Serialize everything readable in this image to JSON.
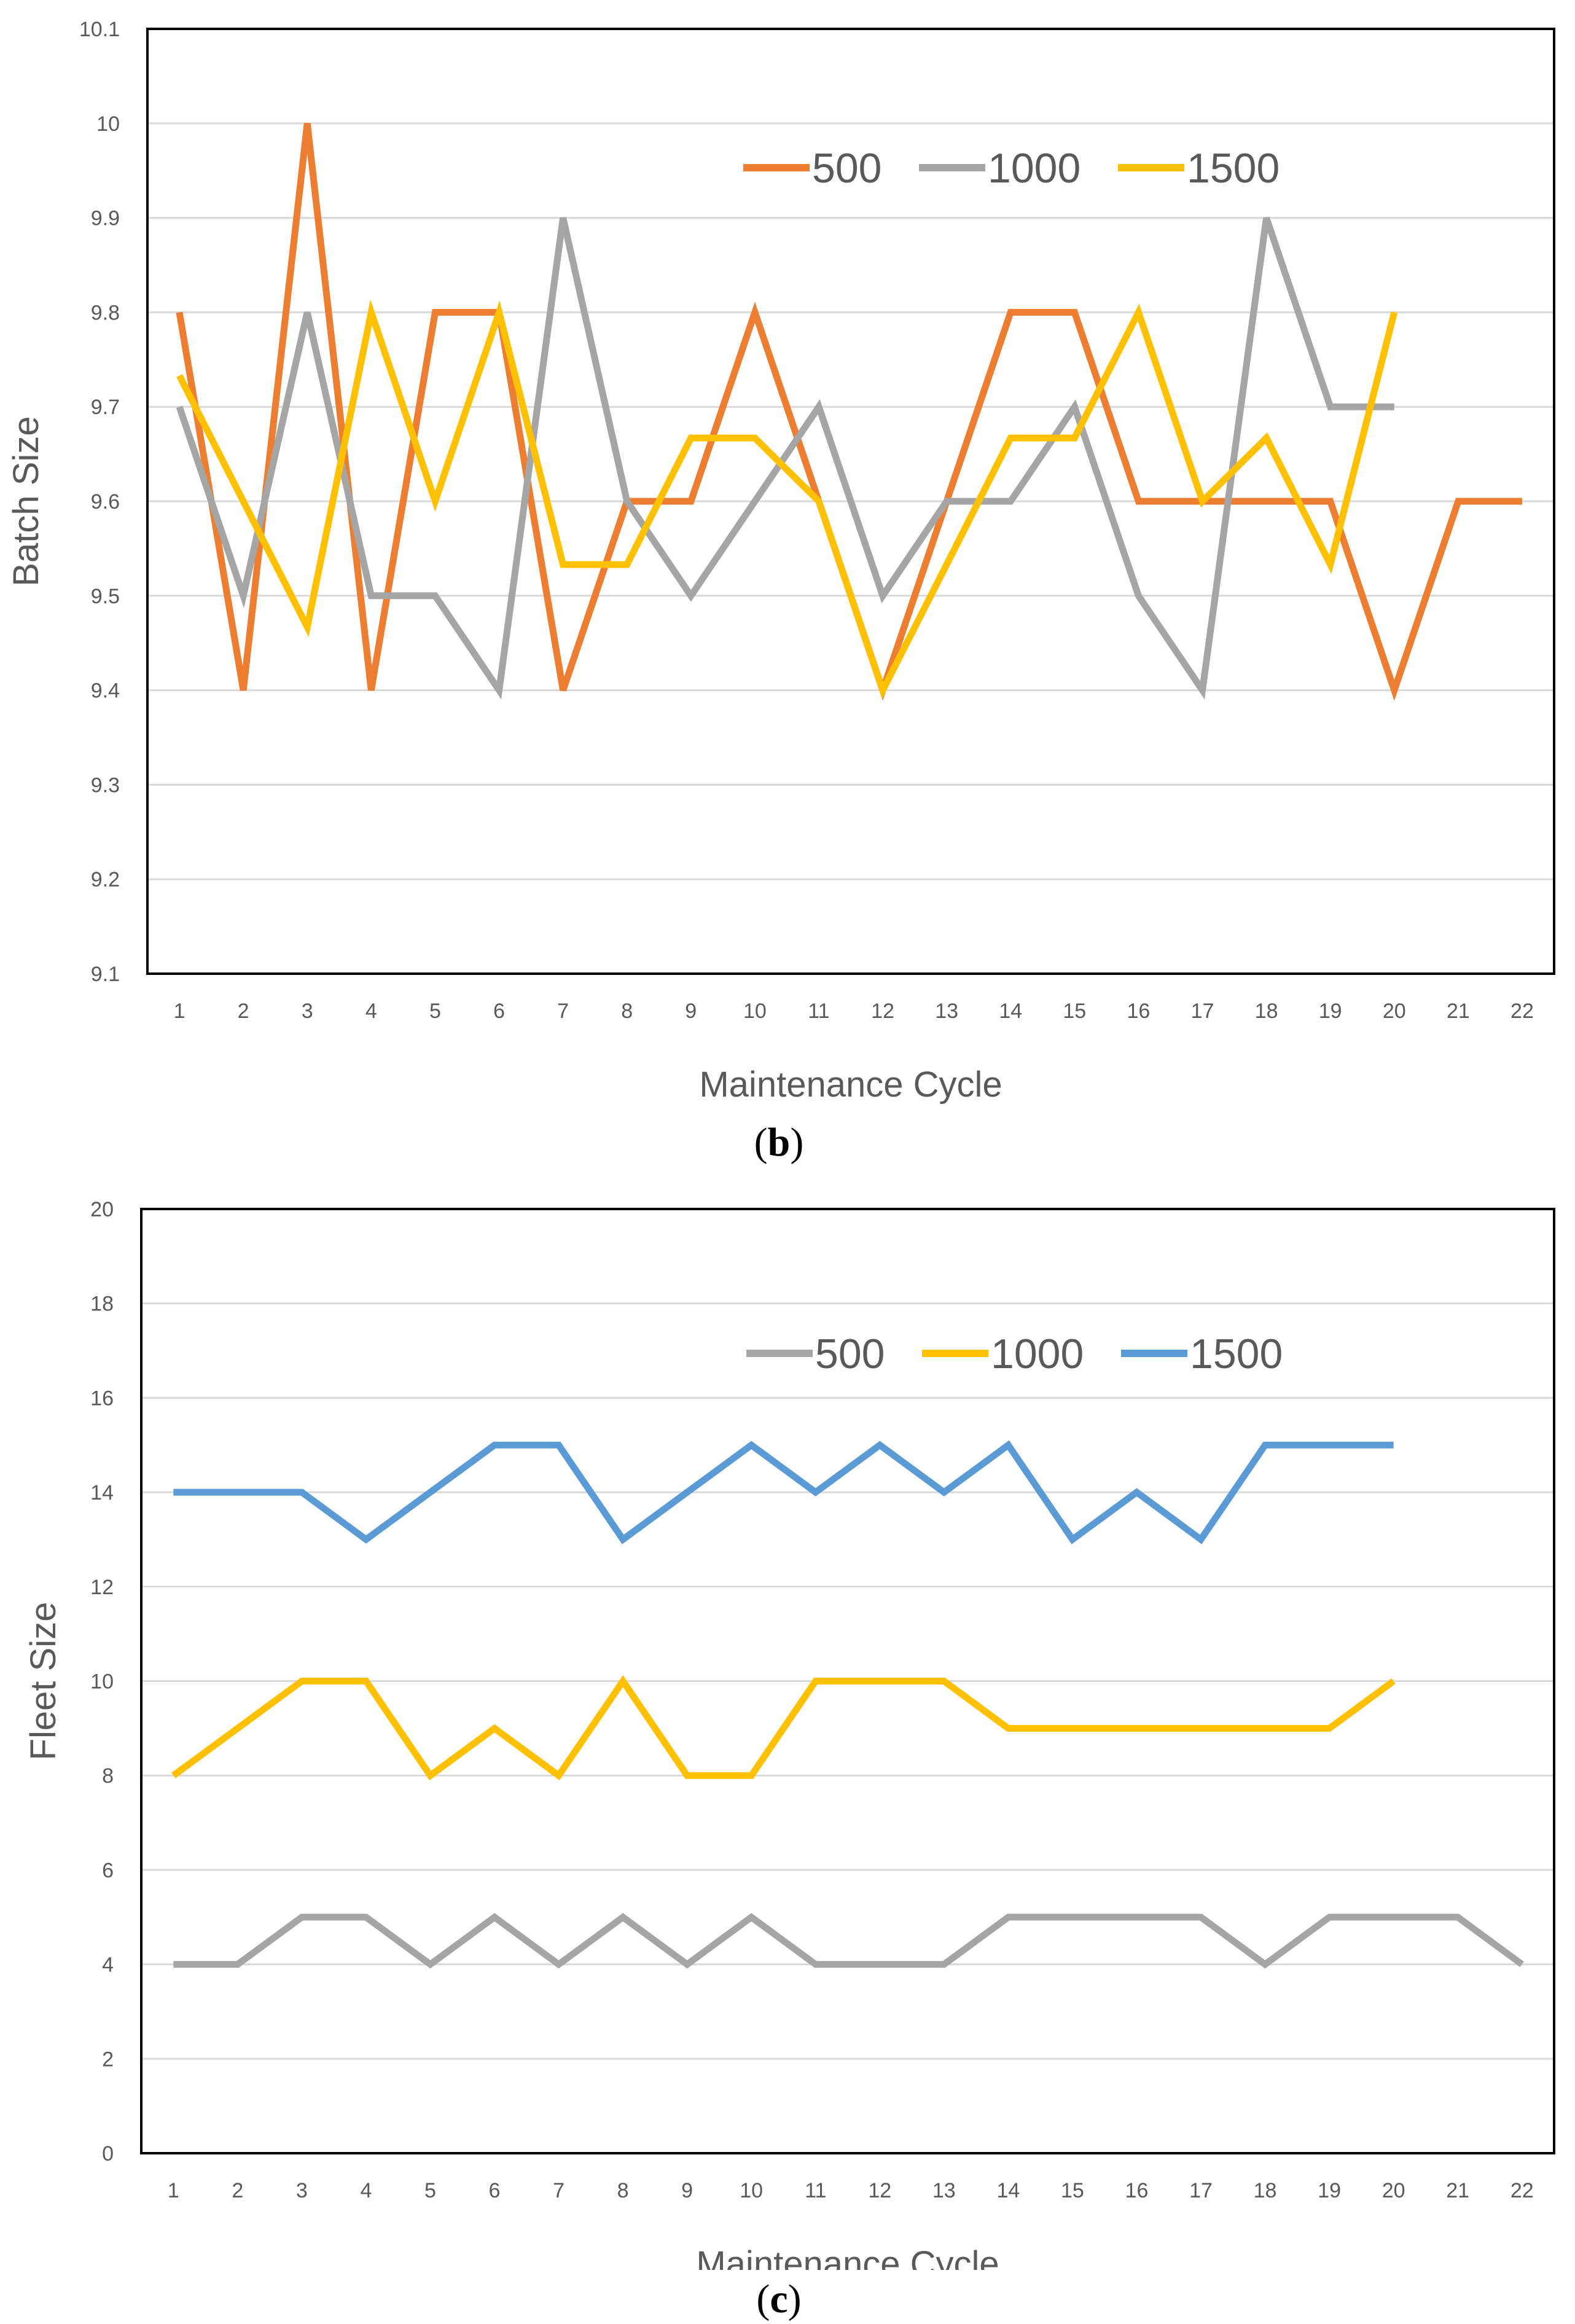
{
  "charts": {
    "b": {
      "chart_data": {
        "type": "line",
        "label": "b",
        "title": "",
        "xlabel": "Maintenance Cycle",
        "ylabel": "Batch Size",
        "categories": [
          "1",
          "2",
          "3",
          "4",
          "5",
          "6",
          "7",
          "8",
          "9",
          "10",
          "11",
          "12",
          "13",
          "14",
          "15",
          "16",
          "17",
          "18",
          "19",
          "20",
          "21",
          "22"
        ],
        "ylim": [
          9.1,
          10.1
        ],
        "yticks": [
          "9.1",
          "9.2",
          "9.3",
          "9.4",
          "9.5",
          "9.6",
          "9.7",
          "9.8",
          "9.9",
          "10",
          "10.1"
        ],
        "grid": true,
        "legend": "top-right",
        "series": [
          {
            "name": "500",
            "color": "#ed7d31",
            "values": [
              9.8,
              9.4,
              10.0,
              9.4,
              9.8,
              9.8,
              9.4,
              9.6,
              9.6,
              9.8,
              9.6,
              9.4,
              9.6,
              9.8,
              9.8,
              9.6,
              9.6,
              9.6,
              9.6,
              9.4,
              9.6,
              9.6
            ]
          },
          {
            "name": "1000",
            "color": "#a5a5a5",
            "values": [
              9.7,
              9.5,
              9.8,
              9.5,
              9.5,
              9.4,
              9.9,
              9.6,
              9.5,
              9.6,
              9.7,
              9.5,
              9.6,
              9.6,
              9.7,
              9.5,
              9.4,
              9.9,
              9.7,
              9.7,
              null,
              null
            ]
          },
          {
            "name": "1500",
            "color": "#ffc000",
            "values": [
              9.733,
              9.6,
              9.467,
              9.8,
              9.6,
              9.8,
              9.533,
              9.533,
              9.667,
              9.667,
              9.6,
              9.4,
              9.533,
              9.667,
              9.667,
              9.8,
              9.6,
              9.667,
              9.533,
              9.8,
              null,
              null
            ]
          }
        ]
      }
    },
    "c": {
      "chart_data": {
        "type": "line",
        "label": "c",
        "title": "",
        "xlabel": "Maintenance Cycle",
        "ylabel": "Fleet Size",
        "categories": [
          "1",
          "2",
          "3",
          "4",
          "5",
          "6",
          "7",
          "8",
          "9",
          "10",
          "11",
          "12",
          "13",
          "14",
          "15",
          "16",
          "17",
          "18",
          "19",
          "20",
          "21",
          "22"
        ],
        "ylim": [
          0,
          20
        ],
        "yticks": [
          "0",
          "2",
          "4",
          "6",
          "8",
          "10",
          "12",
          "14",
          "16",
          "18",
          "20"
        ],
        "grid": true,
        "legend": "top-right",
        "series": [
          {
            "name": "500",
            "color": "#a5a5a5",
            "values": [
              4,
              4,
              5,
              5,
              4,
              5,
              4,
              5,
              4,
              5,
              4,
              4,
              4,
              5,
              5,
              5,
              5,
              4,
              5,
              5,
              5,
              4
            ]
          },
          {
            "name": "1000",
            "color": "#ffc000",
            "values": [
              8,
              9,
              10,
              10,
              8,
              9,
              8,
              10,
              8,
              8,
              10,
              10,
              10,
              9,
              9,
              9,
              9,
              9,
              9,
              10,
              null,
              null
            ]
          },
          {
            "name": "1500",
            "color": "#5b9bd5",
            "values": [
              14,
              14,
              14,
              13,
              14,
              15,
              15,
              13,
              14,
              15,
              14,
              15,
              14,
              15,
              13,
              14,
              13,
              15,
              15,
              15,
              null,
              null
            ]
          }
        ]
      }
    }
  },
  "captions": {
    "b": "b",
    "c": "c"
  }
}
